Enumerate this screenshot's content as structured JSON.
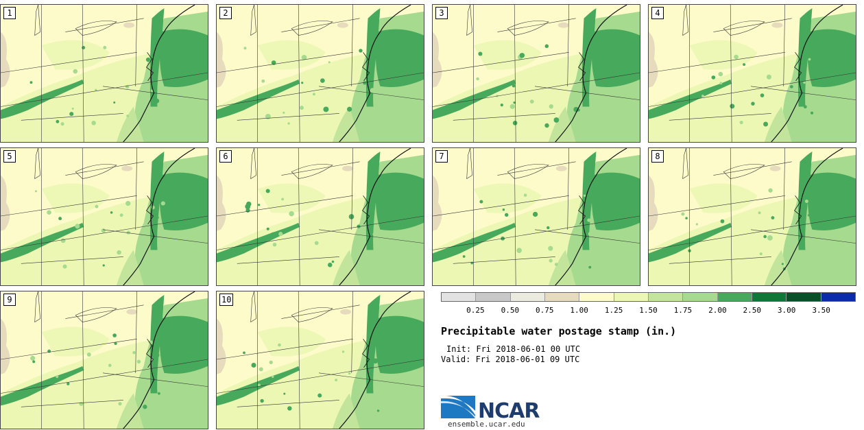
{
  "members": [
    "1",
    "2",
    "3",
    "4",
    "5",
    "6",
    "7",
    "8",
    "9",
    "10"
  ],
  "colorbar": {
    "colors": [
      "#e2e2e2",
      "#c8c8c8",
      "#ecebdf",
      "#e6dbbd",
      "#fdfbc9",
      "#ecf7b4",
      "#c2e59b",
      "#a6da8f",
      "#47a95b",
      "#0d7837",
      "#075028",
      "#0b2ca8"
    ],
    "ticks": [
      "0.25",
      "0.50",
      "0.75",
      "1.00",
      "1.25",
      "1.50",
      "1.75",
      "2.00",
      "2.50",
      "3.00",
      "3.50"
    ]
  },
  "title": "Precipitable water postage stamp (in.)",
  "init": "Init: Fri 2018-06-01 00 UTC",
  "valid": "Valid: Fri 2018-06-01 09 UTC",
  "logo": {
    "text": "NCAR",
    "url": "ensemble.ucar.edu"
  }
}
